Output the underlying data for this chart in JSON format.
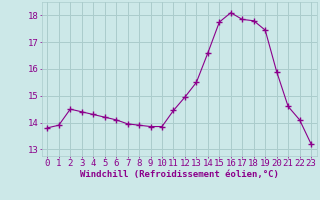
{
  "x": [
    0,
    1,
    2,
    3,
    4,
    5,
    6,
    7,
    8,
    9,
    10,
    11,
    12,
    13,
    14,
    15,
    16,
    17,
    18,
    19,
    20,
    21,
    22,
    23
  ],
  "y": [
    13.8,
    13.9,
    14.5,
    14.4,
    14.3,
    14.2,
    14.1,
    13.95,
    13.9,
    13.85,
    13.85,
    14.45,
    14.95,
    15.5,
    16.6,
    17.75,
    18.1,
    17.85,
    17.8,
    17.45,
    15.9,
    14.6,
    14.1,
    13.2
  ],
  "line_color": "#8B008B",
  "marker": "+",
  "marker_size": 4,
  "bg_color": "#cce8e8",
  "grid_color": "#aacccc",
  "xlabel": "Windchill (Refroidissement éolien,°C)",
  "ylabel_ticks": [
    13,
    14,
    15,
    16,
    17,
    18
  ],
  "xlim": [
    -0.5,
    23.5
  ],
  "ylim": [
    12.75,
    18.5
  ],
  "tick_fontsize": 6.5,
  "xlabel_fontsize": 6.5
}
